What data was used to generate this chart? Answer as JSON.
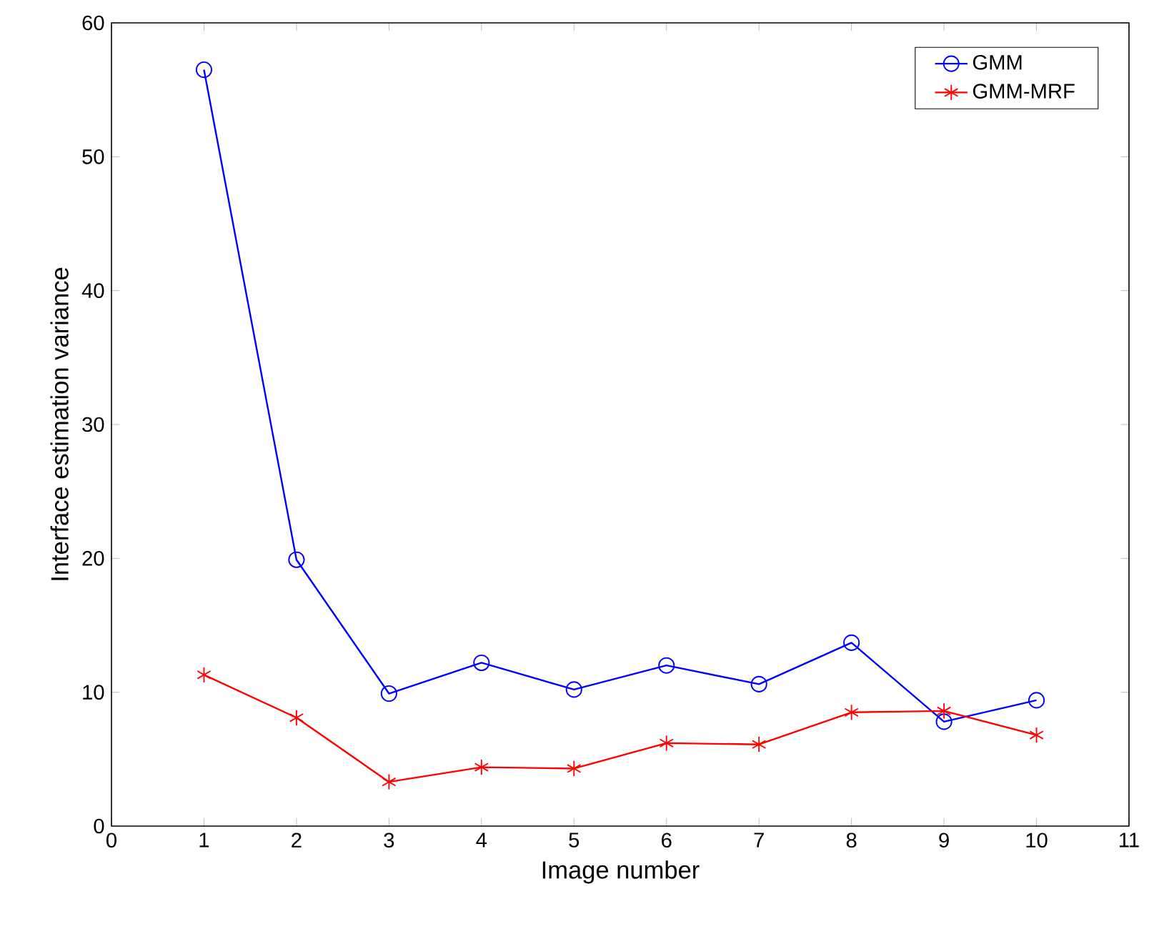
{
  "chart_data": {
    "type": "line",
    "xlabel": "Image number",
    "ylabel": "Interface estimation variance",
    "x": [
      1,
      2,
      3,
      4,
      5,
      6,
      7,
      8,
      9,
      10
    ],
    "series": [
      {
        "name": "GMM",
        "color": "#0000ff",
        "marker": "circle",
        "values": [
          56.5,
          19.9,
          9.9,
          12.2,
          10.2,
          12.0,
          10.6,
          13.7,
          7.8,
          9.4
        ]
      },
      {
        "name": "GMM-MRF",
        "color": "#ff0000",
        "marker": "cross",
        "values": [
          11.3,
          8.1,
          3.3,
          4.4,
          4.3,
          6.2,
          6.1,
          8.5,
          8.6,
          6.8
        ]
      }
    ],
    "xlim": [
      0,
      11
    ],
    "xticks": [
      0,
      1,
      2,
      3,
      4,
      5,
      6,
      7,
      8,
      9,
      10,
      11
    ],
    "ylim": [
      0,
      60
    ],
    "yticks": [
      0,
      10,
      20,
      30,
      40,
      50,
      60
    ],
    "grid": false,
    "legend": "top right"
  }
}
